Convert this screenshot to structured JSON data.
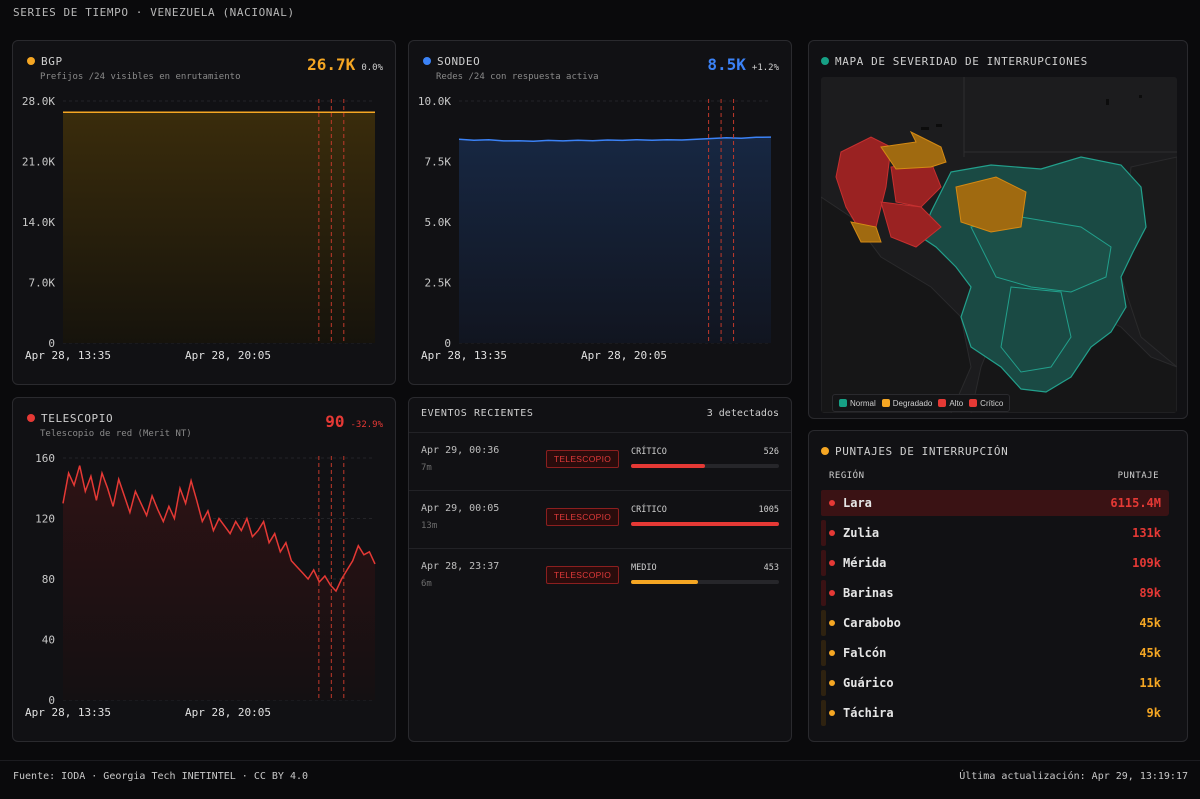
{
  "page": {
    "title": "SERIES DE TIEMPO · VENEZUELA (NACIONAL)"
  },
  "colors": {
    "bgp": "#f5a623",
    "sondeo": "#3b82f6",
    "telescopio": "#e53935",
    "normal": "#16a085",
    "degradado": "#f5a623",
    "alto": "#e53935",
    "critico": "#e53935"
  },
  "bgp": {
    "title": "BGP",
    "subtitle": "Prefijos /24 visibles en enrutamiento",
    "value": "26.7K",
    "change": "0.0%",
    "chart_data": {
      "type": "area",
      "yticks": [
        "28.0K",
        "21.0K",
        "14.0K",
        "7.0K",
        "0"
      ],
      "ylim": [
        0,
        28000
      ],
      "xticks": [
        "Apr 28, 13:35",
        "Apr 28, 20:05"
      ],
      "values": [
        26700,
        26700,
        26700,
        26700,
        26700,
        26700,
        26700,
        26700,
        26700,
        26700,
        26700,
        26700
      ],
      "event_markers": [
        0.82,
        0.86,
        0.9
      ]
    }
  },
  "sondeo": {
    "title": "SONDEO",
    "subtitle": "Redes /24 con respuesta activa",
    "value": "8.5K",
    "change": "+1.2%",
    "chart_data": {
      "type": "area",
      "yticks": [
        "10.0K",
        "7.5K",
        "5.0K",
        "2.5K",
        "0"
      ],
      "ylim": [
        0,
        10000
      ],
      "xticks": [
        "Apr 28, 13:35",
        "Apr 28, 20:05"
      ],
      "values": [
        8420,
        8380,
        8400,
        8350,
        8360,
        8340,
        8370,
        8350,
        8380,
        8360,
        8390,
        8370,
        8400,
        8380,
        8400,
        8390,
        8420,
        8450,
        8480,
        8460,
        8500,
        8510
      ],
      "event_markers": [
        0.8,
        0.84,
        0.88
      ]
    }
  },
  "telescopio": {
    "title": "TELESCOPIO",
    "subtitle": "Telescopio de red (Merit NT)",
    "value": "90",
    "change": "-32.9%",
    "chart_data": {
      "type": "area",
      "yticks": [
        "160",
        "120",
        "80",
        "40",
        "0"
      ],
      "ylim": [
        0,
        160
      ],
      "xticks": [
        "Apr 28, 13:35",
        "Apr 28, 20:05"
      ],
      "values": [
        130,
        150,
        142,
        155,
        138,
        148,
        132,
        150,
        140,
        128,
        146,
        135,
        124,
        138,
        130,
        122,
        135,
        126,
        118,
        128,
        120,
        140,
        130,
        145,
        132,
        118,
        125,
        112,
        120,
        115,
        110,
        118,
        112,
        120,
        108,
        112,
        118,
        104,
        110,
        98,
        104,
        92,
        88,
        84,
        80,
        86,
        78,
        82,
        76,
        72,
        80,
        86,
        92,
        102,
        96,
        98,
        90
      ],
      "event_markers": [
        0.82,
        0.86,
        0.9
      ]
    }
  },
  "events": {
    "title": "EVENTOS RECIENTES",
    "count": "3 detectados",
    "items": [
      {
        "time": "Apr 29, 00:36",
        "ago": "7m",
        "source": "TELESCOPIO",
        "level": "CRÍTICO",
        "value": "526",
        "fill": 0.5,
        "color": "#e53935"
      },
      {
        "time": "Apr 29, 00:05",
        "ago": "13m",
        "source": "TELESCOPIO",
        "level": "CRÍTICO",
        "value": "1005",
        "fill": 1.0,
        "color": "#e53935"
      },
      {
        "time": "Apr 28, 23:37",
        "ago": "6m",
        "source": "TELESCOPIO",
        "level": "MEDIO",
        "value": "453",
        "fill": 0.45,
        "color": "#f5a623"
      }
    ]
  },
  "map": {
    "title": "MAPA DE SEVERIDAD DE INTERRUPCIONES",
    "legend": [
      {
        "label": "Normal",
        "color": "#16a085"
      },
      {
        "label": "Degradado",
        "color": "#f5a623"
      },
      {
        "label": "Alto",
        "color": "#e53935"
      },
      {
        "label": "Crítico",
        "color": "#e53935"
      }
    ]
  },
  "scores": {
    "title": "PUNTAJES DE INTERRUPCIÓN",
    "col_region": "REGIÓN",
    "col_score": "PUNTAJE",
    "rows": [
      {
        "name": "Lara",
        "value": "6115.4M",
        "color": "#e53935"
      },
      {
        "name": "Zulia",
        "value": "131k",
        "color": "#e53935"
      },
      {
        "name": "Mérida",
        "value": "109k",
        "color": "#e53935"
      },
      {
        "name": "Barinas",
        "value": "89k",
        "color": "#e53935"
      },
      {
        "name": "Carabobo",
        "value": "45k",
        "color": "#f5a623"
      },
      {
        "name": "Falcón",
        "value": "45k",
        "color": "#f5a623"
      },
      {
        "name": "Guárico",
        "value": "11k",
        "color": "#f5a623"
      },
      {
        "name": "Táchira",
        "value": "9k",
        "color": "#f5a623"
      }
    ]
  },
  "footer": {
    "source": "Fuente: IODA · Georgia Tech INETINTEL · CC BY 4.0",
    "updated": "Última actualización: Apr 29, 13:19:17"
  }
}
